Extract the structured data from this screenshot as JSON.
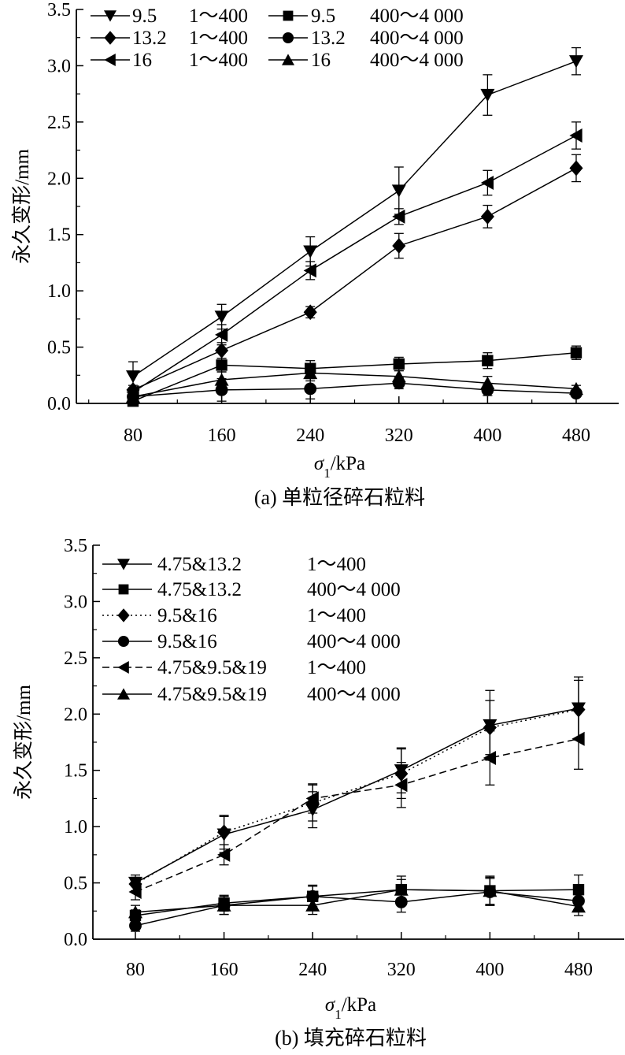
{
  "chart_data": [
    {
      "type": "line",
      "caption": "(a) 单粒径碎石粒料",
      "xlabel_symbol": "σ",
      "xlabel_sub": "1",
      "xlabel_unit": "/kPa",
      "ylabel": "永久变形/mm",
      "ylim": [
        0,
        3.5
      ],
      "yticks": [
        "0.0",
        "0.5",
        "1.0",
        "1.5",
        "2.0",
        "2.5",
        "3.0",
        "3.5"
      ],
      "x": [
        80,
        160,
        240,
        320,
        400,
        480
      ],
      "xticks": [
        "80",
        "160",
        "240",
        "320",
        "400",
        "480"
      ],
      "series": [
        {
          "name": "9.5",
          "range": "1～400",
          "marker": "tri-down",
          "dash": "solid",
          "values": [
            0.24,
            0.77,
            1.35,
            1.89,
            2.74,
            3.04
          ],
          "errors": [
            0.13,
            0.11,
            0.13,
            0.21,
            0.18,
            0.12
          ]
        },
        {
          "name": "9.5",
          "range": "400～4 000",
          "marker": "square",
          "dash": "solid",
          "values": [
            0.02,
            0.34,
            0.31,
            0.35,
            0.38,
            0.45
          ],
          "errors": [
            0.02,
            0.06,
            0.07,
            0.06,
            0.07,
            0.06
          ]
        },
        {
          "name": "13.2",
          "range": "1～400",
          "marker": "diamond",
          "dash": "solid",
          "values": [
            0.12,
            0.47,
            0.81,
            1.4,
            1.66,
            2.09
          ],
          "errors": [
            0.04,
            0.07,
            0.05,
            0.11,
            0.1,
            0.12
          ]
        },
        {
          "name": "13.2",
          "range": "400～4 000",
          "marker": "circle",
          "dash": "solid",
          "values": [
            0.06,
            0.12,
            0.13,
            0.18,
            0.12,
            0.09
          ],
          "errors": [
            0.05,
            0.1,
            0.09,
            0.05,
            0.05,
            0.03
          ]
        },
        {
          "name": "16",
          "range": "1～400",
          "marker": "tri-left",
          "dash": "solid",
          "values": [
            0.1,
            0.61,
            1.18,
            1.66,
            1.96,
            2.38
          ],
          "errors": [
            0.04,
            0.09,
            0.08,
            0.07,
            0.11,
            0.12
          ]
        },
        {
          "name": "16",
          "range": "400～4 000",
          "marker": "tri-up",
          "dash": "solid",
          "values": [
            0.06,
            0.21,
            0.27,
            0.24,
            0.18,
            0.13
          ],
          "errors": [
            0.05,
            0.07,
            0.07,
            0.05,
            0.06,
            0.03
          ]
        }
      ]
    },
    {
      "type": "line",
      "caption": "(b) 填充碎石粒料",
      "xlabel_symbol": "σ",
      "xlabel_sub": "1",
      "xlabel_unit": "/kPa",
      "ylabel": "永久变形/mm",
      "ylim": [
        0,
        3.5
      ],
      "yticks": [
        "0.0",
        "0.5",
        "1.0",
        "1.5",
        "2.0",
        "2.5",
        "3.0",
        "3.5"
      ],
      "x": [
        80,
        160,
        240,
        320,
        400,
        480
      ],
      "xticks": [
        "80",
        "160",
        "240",
        "320",
        "400",
        "480"
      ],
      "series": [
        {
          "name": "4.75&13.2",
          "range": "1～400",
          "marker": "tri-down",
          "dash": "solid",
          "values": [
            0.5,
            0.93,
            1.15,
            1.5,
            1.9,
            2.05
          ],
          "errors": [
            0.07,
            0.16,
            0.16,
            0.2,
            0.31,
            0.28
          ]
        },
        {
          "name": "4.75&13.2",
          "range": "400～4 000",
          "marker": "square",
          "dash": "solid",
          "values": [
            0.21,
            0.32,
            0.38,
            0.44,
            0.43,
            0.44
          ],
          "errors": [
            0.05,
            0.07,
            0.1,
            0.12,
            0.12,
            0.13
          ]
        },
        {
          "name": "9.5&16",
          "range": "1～400",
          "marker": "diamond",
          "dash": "dotted",
          "values": [
            0.49,
            0.95,
            1.21,
            1.47,
            1.88,
            2.04
          ],
          "errors": [
            0.06,
            0.15,
            0.16,
            0.22,
            0.24,
            0.26
          ]
        },
        {
          "name": "9.5&16",
          "range": "400～4 000",
          "marker": "circle",
          "dash": "solid",
          "values": [
            0.12,
            0.3,
            0.38,
            0.33,
            0.42,
            0.34
          ],
          "errors": [
            0.05,
            0.08,
            0.09,
            0.09,
            0.12,
            0.09
          ]
        },
        {
          "name": "4.75&9.5&19",
          "range": "1～400",
          "marker": "tri-left",
          "dash": "dashed",
          "values": [
            0.42,
            0.75,
            1.25,
            1.37,
            1.61,
            1.78
          ],
          "errors": [
            0.07,
            0.09,
            0.13,
            0.2,
            0.24,
            0.27
          ]
        },
        {
          "name": "4.75&9.5&19",
          "range": "400～4 000",
          "marker": "tri-up",
          "dash": "solid",
          "values": [
            0.24,
            0.3,
            0.3,
            0.44,
            0.43,
            0.29
          ],
          "errors": [
            0.06,
            0.08,
            0.08,
            0.09,
            0.13,
            0.08
          ]
        }
      ]
    }
  ]
}
